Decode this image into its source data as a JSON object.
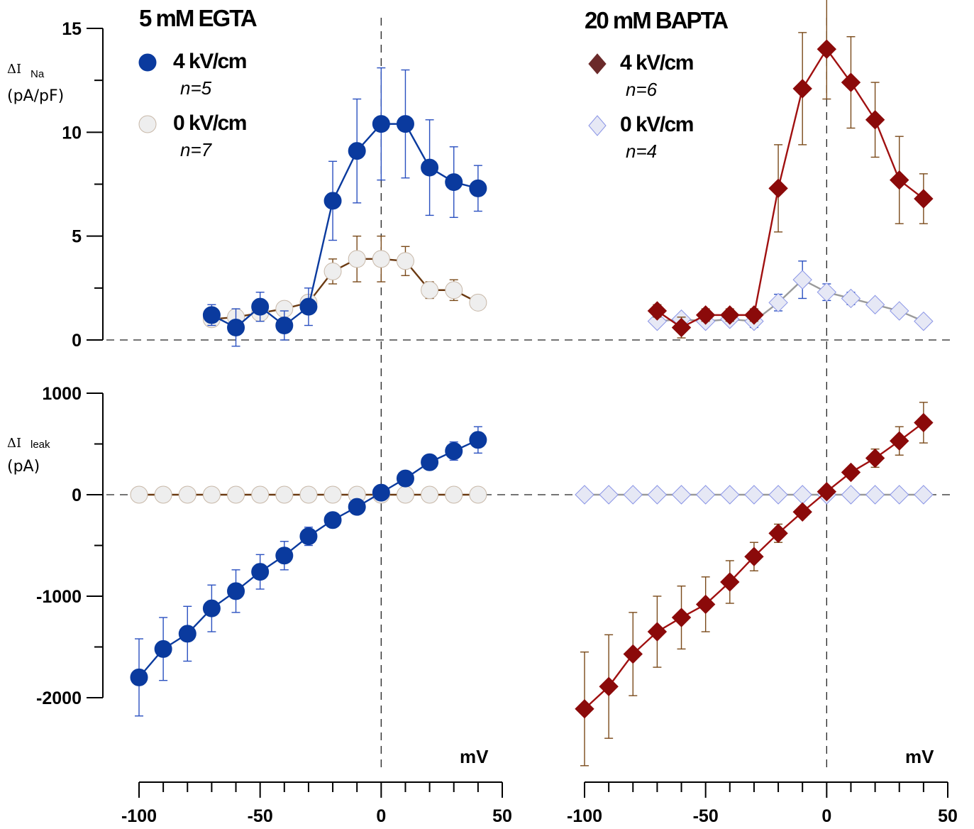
{
  "figure": {
    "left_title": "5 mM EGTA",
    "right_title": "20 mM BAPTA",
    "top_ylabel": {
      "symbol": "ΔI",
      "subscript": "Na",
      "unit": "(pA/pF)"
    },
    "bottom_ylabel": {
      "symbol": "ΔI",
      "subscript": "leak",
      "unit": "(pA)"
    },
    "x_unit": "mV",
    "colors": {
      "egta_4kv": "#0a3a9e",
      "egta_0kv_fill": "#eeeeee",
      "egta_0kv_line": "#6b3a12",
      "bapta_4kv": "#8b0a0a",
      "bapta_4kv_error": "#7a4a1a",
      "bapta_0kv_fill": "#e6e8f5",
      "bapta_0kv_edge": "#8a95e6",
      "bapta_0kv_line": "#999999"
    }
  },
  "chart_data": [
    {
      "type": "line",
      "panel": "top-left",
      "title": "5 mM EGTA",
      "ylabel": "ΔI Na (pA/pF)",
      "xlabel": "mV",
      "xlim": [
        -100,
        50
      ],
      "ylim": [
        0,
        15
      ],
      "yticks": [
        0,
        5,
        10,
        15
      ],
      "xticks": [
        -100,
        -50,
        0,
        50
      ],
      "legend_position": "top-left",
      "series": [
        {
          "name": "4 kV/cm",
          "n_label": "n=5",
          "marker": "circle",
          "color": "#0a3a9e",
          "x": [
            -70,
            -60,
            -50,
            -40,
            -30,
            -20,
            -10,
            0,
            10,
            20,
            30,
            40
          ],
          "y": [
            1.2,
            0.6,
            1.6,
            0.7,
            1.6,
            6.7,
            9.1,
            10.4,
            10.4,
            8.3,
            7.6,
            7.3
          ],
          "err": [
            0.5,
            0.9,
            0.7,
            0.7,
            0.9,
            1.9,
            2.5,
            2.7,
            2.6,
            2.3,
            1.7,
            1.1
          ]
        },
        {
          "name": "0 kV/cm",
          "n_label": "n=7",
          "marker": "circle",
          "color": "#eeeeee",
          "x": [
            -70,
            -60,
            -50,
            -40,
            -30,
            -20,
            -10,
            0,
            10,
            20,
            30,
            40
          ],
          "y": [
            1.0,
            1.1,
            1.3,
            1.5,
            1.8,
            3.3,
            3.9,
            3.9,
            3.8,
            2.4,
            2.4,
            1.8
          ],
          "err": [
            0.2,
            0.2,
            0.3,
            0.3,
            0.3,
            0.6,
            1.1,
            1.1,
            0.7,
            0.4,
            0.5,
            0.2
          ]
        }
      ]
    },
    {
      "type": "line",
      "panel": "top-right",
      "title": "20 mM BAPTA",
      "ylabel": "ΔI Na (pA/pF)",
      "xlabel": "mV",
      "xlim": [
        -100,
        50
      ],
      "ylim": [
        0,
        15
      ],
      "yticks": [
        0,
        5,
        10,
        15
      ],
      "xticks": [
        -100,
        -50,
        0,
        50
      ],
      "legend_position": "top-left",
      "series": [
        {
          "name": "4 kV/cm",
          "n_label": "n=6",
          "marker": "diamond",
          "color": "#8b0a0a",
          "x": [
            -70,
            -60,
            -50,
            -40,
            -30,
            -20,
            -10,
            0,
            10,
            20,
            30,
            40
          ],
          "y": [
            1.4,
            0.6,
            1.2,
            1.2,
            1.2,
            7.3,
            12.1,
            14.0,
            12.4,
            10.6,
            7.7,
            6.8
          ],
          "err": [
            0.3,
            0.5,
            0.3,
            0.3,
            0.3,
            2.1,
            2.7,
            2.4,
            2.2,
            1.8,
            2.1,
            1.2
          ]
        },
        {
          "name": "0 kV/cm",
          "n_label": "n=4",
          "marker": "diamond",
          "color": "#e6e8f5",
          "x": [
            -70,
            -60,
            -50,
            -40,
            -30,
            -20,
            -10,
            0,
            10,
            20,
            30,
            40
          ],
          "y": [
            0.9,
            1.0,
            0.9,
            1.0,
            0.9,
            1.8,
            2.9,
            2.3,
            2.0,
            1.7,
            1.4,
            0.9
          ],
          "err": [
            0.1,
            0.1,
            0.1,
            0.2,
            0.3,
            0.4,
            0.9,
            0.4,
            0.3,
            0.2,
            0.2,
            0.1
          ]
        }
      ]
    },
    {
      "type": "line",
      "panel": "bottom-left",
      "ylabel": "ΔI leak (pA)",
      "xlabel": "mV",
      "xlim": [
        -100,
        50
      ],
      "ylim": [
        -2000,
        1000
      ],
      "yticks": [
        -2000,
        -1000,
        0,
        1000
      ],
      "xticks": [
        -100,
        -50,
        0,
        50
      ],
      "series": [
        {
          "name": "4 kV/cm",
          "marker": "circle",
          "color": "#0a3a9e",
          "x": [
            -100,
            -90,
            -80,
            -70,
            -60,
            -50,
            -40,
            -30,
            -20,
            -10,
            0,
            10,
            20,
            30,
            40
          ],
          "y": [
            -1800,
            -1520,
            -1370,
            -1120,
            -950,
            -760,
            -600,
            -410,
            -250,
            -120,
            20,
            160,
            320,
            430,
            540
          ],
          "err": [
            380,
            310,
            270,
            230,
            210,
            170,
            140,
            90,
            60,
            40,
            30,
            40,
            60,
            90,
            130
          ]
        },
        {
          "name": "0 kV/cm",
          "marker": "circle",
          "color": "#eeeeee",
          "x": [
            -100,
            -90,
            -80,
            -70,
            -60,
            -50,
            -40,
            -30,
            -20,
            -10,
            0,
            10,
            20,
            30,
            40
          ],
          "y": [
            0,
            0,
            0,
            0,
            0,
            0,
            0,
            0,
            0,
            0,
            0,
            0,
            0,
            0,
            0
          ],
          "err": [
            0,
            0,
            0,
            0,
            0,
            0,
            0,
            0,
            0,
            0,
            0,
            0,
            0,
            0,
            0
          ]
        }
      ]
    },
    {
      "type": "line",
      "panel": "bottom-right",
      "ylabel": "ΔI leak (pA)",
      "xlabel": "mV",
      "xlim": [
        -100,
        50
      ],
      "ylim": [
        -2000,
        1000
      ],
      "yticks": [
        -2000,
        -1000,
        0,
        1000
      ],
      "xticks": [
        -100,
        -50,
        0,
        50
      ],
      "series": [
        {
          "name": "4 kV/cm",
          "marker": "diamond",
          "color": "#8b0a0a",
          "x": [
            -100,
            -90,
            -80,
            -70,
            -60,
            -50,
            -40,
            -30,
            -20,
            -10,
            0,
            10,
            20,
            30,
            40
          ],
          "y": [
            -2110,
            -1890,
            -1570,
            -1350,
            -1210,
            -1080,
            -860,
            -610,
            -380,
            -170,
            30,
            220,
            360,
            530,
            710
          ],
          "err": [
            560,
            510,
            410,
            350,
            310,
            270,
            210,
            140,
            90,
            50,
            30,
            40,
            90,
            140,
            200
          ]
        },
        {
          "name": "0 kV/cm",
          "marker": "diamond",
          "color": "#e6e8f5",
          "x": [
            -100,
            -90,
            -80,
            -70,
            -60,
            -50,
            -40,
            -30,
            -20,
            -10,
            0,
            10,
            20,
            30,
            40
          ],
          "y": [
            0,
            0,
            0,
            0,
            0,
            0,
            0,
            0,
            0,
            0,
            0,
            0,
            0,
            0,
            0
          ],
          "err": [
            0,
            0,
            0,
            0,
            0,
            0,
            0,
            0,
            0,
            0,
            0,
            0,
            0,
            0,
            0
          ]
        }
      ]
    }
  ]
}
